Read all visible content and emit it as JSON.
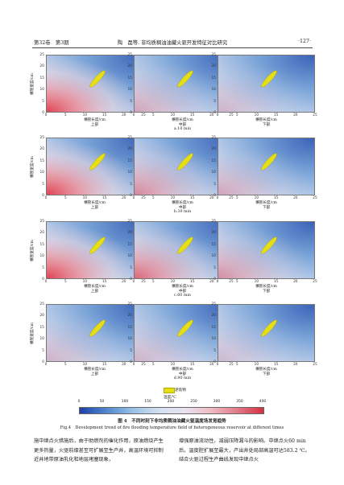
{
  "header": {
    "volume_issue": "第32卷　第3期",
    "article": "陶　磊等. 非均质稠油油藏火驱开发特征对比研究",
    "page": "·127·"
  },
  "axes": {
    "ylabel": "横管宽度/cm",
    "xlabel": "横管长度/cm",
    "yticks": [
      "25",
      "20",
      "15",
      "10",
      "5",
      "0"
    ],
    "xticks": [
      "0",
      "5",
      "10",
      "15",
      "20",
      "25"
    ]
  },
  "positions": [
    "上部",
    "中部",
    "下部"
  ],
  "rows": [
    {
      "label": "a.10 min",
      "hot": [
        1.0,
        0.35,
        0.25
      ]
    },
    {
      "label": "b.30 min",
      "hot": [
        1.0,
        0.55,
        0.35
      ]
    },
    {
      "label": "c.60 min",
      "hot": [
        1.0,
        0.75,
        0.5
      ]
    },
    {
      "label": "d.90 min",
      "hot": [
        0.25,
        0.25,
        0.2
      ]
    }
  ],
  "legend": {
    "swatch_label": "泥焦物",
    "colorbar_unit": "温度/℃"
  },
  "colorbar": {
    "ticks": [
      "0",
      "50",
      "100",
      "150",
      "200",
      "250",
      "300",
      "350",
      "400"
    ],
    "stops": [
      "#1f3fa8",
      "#4f86cf",
      "#96c0e6",
      "#d3dff0",
      "#e8e3ef",
      "#edbcc4",
      "#e27a88",
      "#d3313e"
    ]
  },
  "caption": {
    "cn": "图 4　不同时刻下非均质稠油油藏火驱温度场发育趋势",
    "en": "Fig.4　Development trend of fire flooding temperature field of heterogeneous reservoir at different times"
  },
  "body_text": {
    "left": "施中继点火措施后，由于助燃剂的催化作用，原油燃烧产生更多热量，火驱前缘甚至可扩展至生产井，高温环境可抑制近井地带原油乳化和地层堵塞现象，",
    "right": "增强原油流动性，减弱压降漏斗的影响。中继点火60 min后，温度腔扩展至最大，产出井处局部高温可达583.2 ℃。结合火驱过程生产曲线发现中继点火"
  }
}
